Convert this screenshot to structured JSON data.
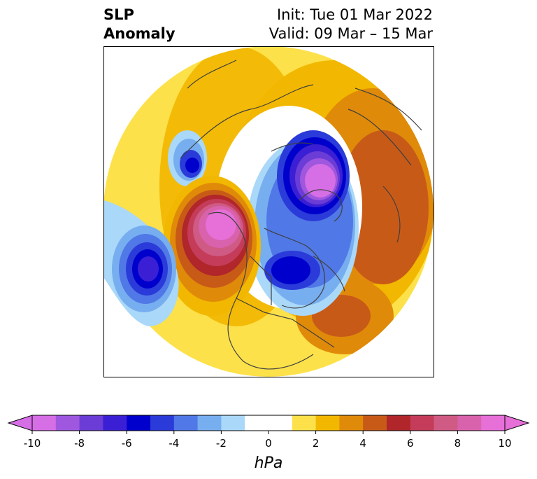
{
  "title": {
    "line1": "SLP",
    "line2": "Anomaly",
    "init": "Init: Tue 01 Mar 2022",
    "valid": "Valid: 09 Mar – 15 Mar"
  },
  "colorbar": {
    "unit": "hPa",
    "ticks": [
      "-10",
      "-8",
      "-6",
      "-4",
      "-2",
      "0",
      "2",
      "4",
      "6",
      "8",
      "10"
    ],
    "tick_values": [
      -10,
      -8,
      -6,
      -4,
      -2,
      0,
      2,
      4,
      6,
      8,
      10
    ],
    "colors": [
      "#d66ee6",
      "#9e57de",
      "#6b3cd6",
      "#3b1fd4",
      "#0000cc",
      "#2a3bd9",
      "#5078e6",
      "#77aef0",
      "#aad8f8",
      "#ffffff",
      "#ffffff",
      "#fde14a",
      "#f2b700",
      "#e08a0a",
      "#c85a18",
      "#b0262a",
      "#c43c5a",
      "#cf5a84",
      "#d962ad",
      "#e66fd8"
    ]
  },
  "map": {
    "projection": "polar stereographic (North Pole)",
    "features": [
      {
        "name": "north-pacific-low",
        "sign": "negative",
        "peak_hpa": -7
      },
      {
        "name": "nw-america-high",
        "sign": "positive",
        "peak_hpa": 9
      },
      {
        "name": "arctic-low",
        "sign": "negative",
        "peak_hpa": -9
      },
      {
        "name": "hudson-bay-low",
        "sign": "negative",
        "peak_hpa": -6
      },
      {
        "name": "gulf-of-alaska-low",
        "sign": "negative",
        "peak_hpa": -6
      },
      {
        "name": "north-atlantic-high",
        "sign": "positive",
        "peak_hpa": 5
      },
      {
        "name": "eurasia-high",
        "sign": "positive",
        "peak_hpa": 5
      }
    ]
  }
}
